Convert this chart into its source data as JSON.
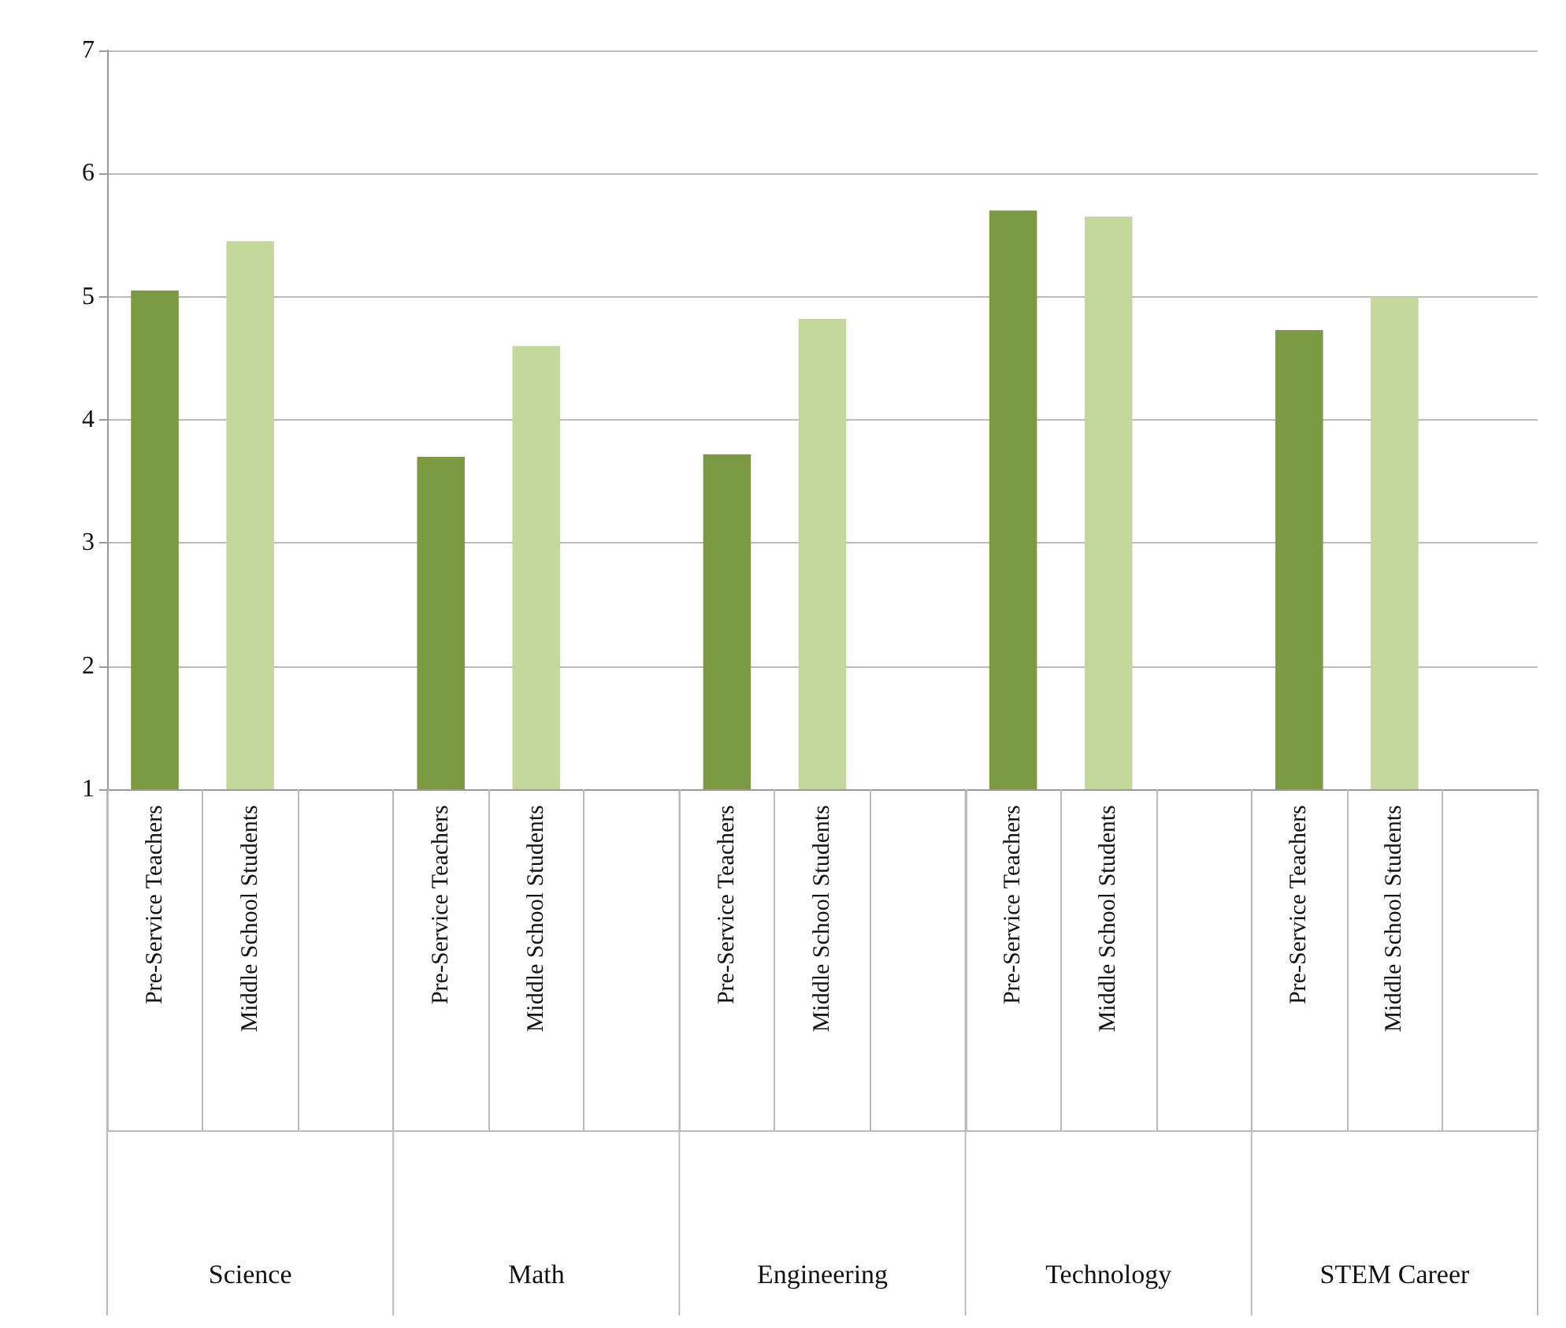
{
  "chart_data": {
    "type": "bar",
    "categories": [
      "Pre-Service Teachers",
      "Middle School Students",
      null,
      "Pre-Service Teachers",
      "Middle School Students",
      null,
      "Pre-Service Teachers",
      "Middle School Students",
      null,
      "Pre-Service Teachers",
      "Middle School Students",
      null,
      "Pre-Service Teachers",
      "Middle School Students",
      null
    ],
    "values": [
      5.05,
      5.45,
      null,
      3.7,
      4.6,
      null,
      3.72,
      4.82,
      null,
      5.7,
      5.65,
      null,
      4.73,
      5.0,
      null
    ],
    "colors": [
      "#7c9a42",
      "#c5d89c",
      null,
      "#7c9a42",
      "#c5d89c",
      null,
      "#7c9a42",
      "#c5d89c",
      null,
      "#7c9a42",
      "#c5d89c",
      null,
      "#7c9a42",
      "#c5d89c",
      null
    ],
    "annotations": [
      "Science",
      "Math",
      "Engineering",
      "Technology",
      "STEM Career"
    ],
    "ylim": [
      1,
      7
    ],
    "yticks": [
      1,
      2,
      3,
      4,
      5,
      6,
      7
    ],
    "grid": "y"
  }
}
